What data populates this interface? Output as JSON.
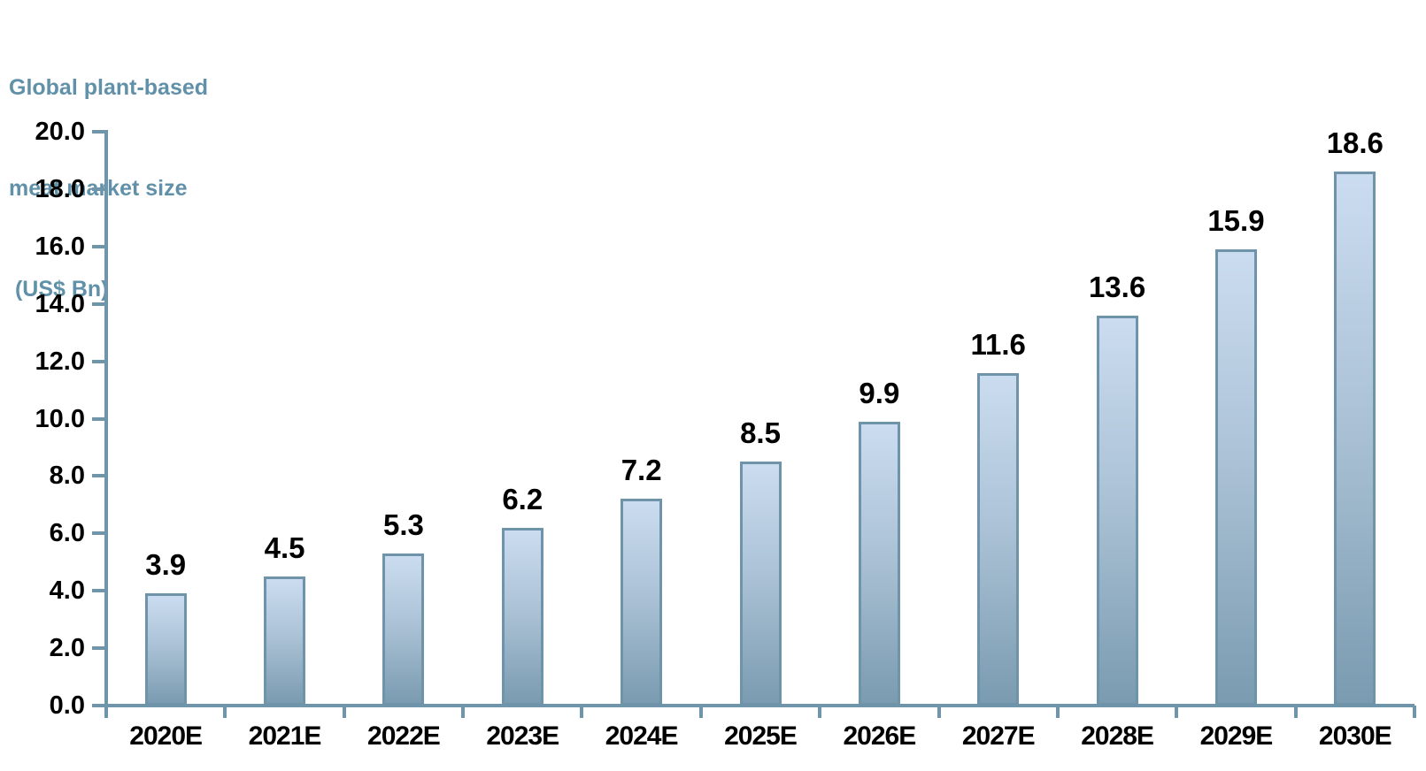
{
  "chart": {
    "title_lines": [
      "Global plant-based",
      "meat market size",
      " (US$ Bn)"
    ]
  },
  "chart_data": {
    "type": "bar",
    "title": "Global plant-based meat market size (US$ Bn)",
    "categories": [
      "2020E",
      "2021E",
      "2022E",
      "2023E",
      "2024E",
      "2025E",
      "2026E",
      "2027E",
      "2028E",
      "2029E",
      "2030E"
    ],
    "values": [
      3.9,
      4.5,
      5.3,
      6.2,
      7.2,
      8.5,
      9.9,
      11.6,
      13.6,
      15.9,
      18.6
    ],
    "value_labels": [
      "3.9",
      "4.5",
      "5.3",
      "6.2",
      "7.2",
      "8.5",
      "9.9",
      "11.6",
      "13.6",
      "15.9",
      "18.6"
    ],
    "xlabel": "",
    "ylabel": "",
    "ylim": [
      0,
      20
    ],
    "ytick_step": 2,
    "y_tick_labels": [
      "20.0",
      "18.0",
      "16.0",
      "14.0",
      "12.0",
      "10.0",
      "8.0",
      "6.0",
      "4.0",
      "2.0",
      "0.0"
    ],
    "grid": false,
    "legend": "none",
    "colors": {
      "bar_fill_top": "#cbdcf0",
      "bar_fill_bottom": "#7a9bb0",
      "bar_border": "#6f93a8",
      "axis": "#6f95aa",
      "value_label_text": "#000000",
      "tick_label_text": "#000000",
      "title_text": "#6191a9"
    }
  }
}
